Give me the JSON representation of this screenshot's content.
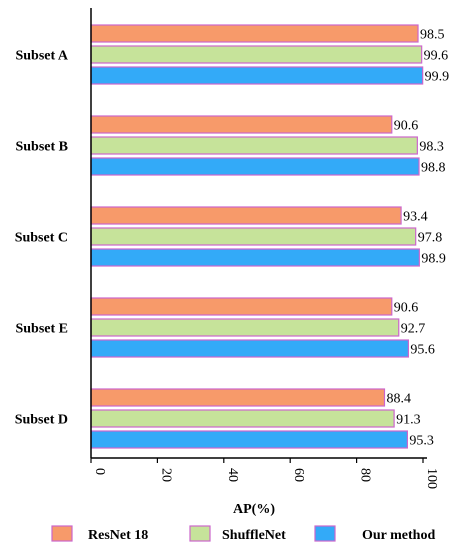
{
  "chart_data": {
    "type": "bar",
    "orientation": "horizontal",
    "categories": [
      "Subset A",
      "Subset B",
      "Subset C",
      "Subset E",
      "Subset D"
    ],
    "series": [
      {
        "name": "ResNet 18",
        "color": "#F79A6A",
        "values": [
          98.5,
          90.6,
          93.4,
          90.6,
          88.4
        ]
      },
      {
        "name": "ShuffleNet",
        "color": "#C6E39A",
        "values": [
          99.6,
          98.3,
          97.8,
          92.7,
          91.3
        ]
      },
      {
        "name": "Our method",
        "color": "#33AAF8",
        "values": [
          99.9,
          98.8,
          98.9,
          95.6,
          95.3
        ]
      }
    ],
    "bar_border_color": "#CC66CC",
    "xlabel": "AP(%)",
    "ylabel": "",
    "title": "",
    "xlim": [
      0,
      100
    ],
    "xticks": [
      0,
      20,
      40,
      60,
      80,
      100
    ],
    "tick_label_rotation": "90",
    "grid": false,
    "legend_position": "bottom"
  }
}
